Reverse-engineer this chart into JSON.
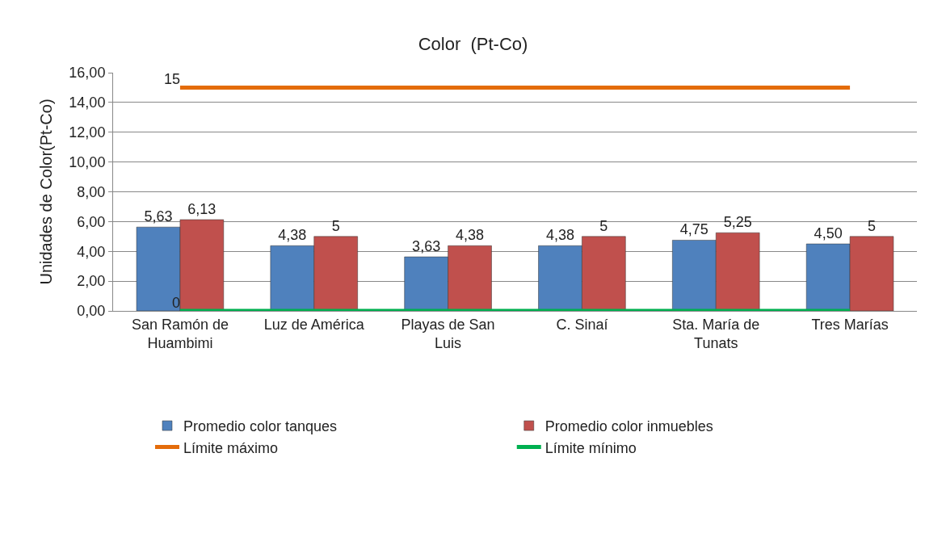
{
  "chart_data": {
    "type": "bar",
    "title": "Color  (Pt-Co)",
    "ylabel": "Unidades de Color(Pt-Co)",
    "categories": [
      "San Ramón de Huambimi",
      "Luz de América",
      "Playas de San Luis",
      "C. Sinaí",
      "Sta. María de Tunats",
      "Tres Marías"
    ],
    "series": [
      {
        "name": "Promedio color tanques",
        "color": "#4f81bd",
        "values": [
          5.63,
          4.38,
          3.63,
          4.38,
          4.75,
          4.5
        ],
        "value_labels": [
          "5,63",
          "4,38",
          "3,63",
          "4,38",
          "4,75",
          "4,50"
        ]
      },
      {
        "name": "Promedio color inmuebles",
        "color": "#c0504d",
        "values": [
          6.13,
          5,
          4.38,
          5,
          5.25,
          5
        ],
        "value_labels": [
          "6,13",
          "5",
          "4,38",
          "5",
          "5,25",
          "5"
        ]
      },
      {
        "name": "Límite máximo",
        "type": "line",
        "color": "#e46c0a",
        "values": [
          15,
          15,
          15,
          15,
          15,
          15
        ],
        "value_labels": [
          "15",
          null,
          null,
          null,
          null,
          null
        ]
      },
      {
        "name": "Límite mínimo",
        "type": "line",
        "color": "#00b050",
        "values": [
          0,
          0,
          0,
          0,
          0,
          0
        ],
        "value_labels": [
          "0",
          null,
          null,
          null,
          null,
          null
        ]
      }
    ],
    "ylim": [
      0,
      16
    ],
    "yticks": [
      {
        "value": 0,
        "label": "0,00"
      },
      {
        "value": 2,
        "label": "2,00"
      },
      {
        "value": 4,
        "label": "4,00"
      },
      {
        "value": 6,
        "label": "6,00"
      },
      {
        "value": 8,
        "label": "8,00"
      },
      {
        "value": 10,
        "label": "10,00"
      },
      {
        "value": 12,
        "label": "12,00"
      },
      {
        "value": 14,
        "label": "14,00"
      },
      {
        "value": 16,
        "label": "16,00"
      }
    ],
    "grid": "y",
    "legend": "bottom"
  }
}
